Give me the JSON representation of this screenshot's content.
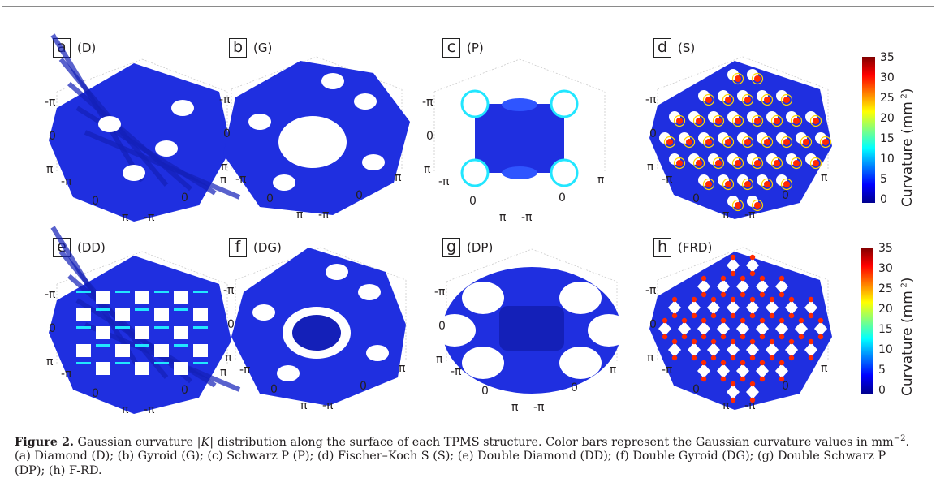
{
  "figure": {
    "panels": [
      {
        "letter": "a",
        "abbr": "(D)",
        "style": "grid"
      },
      {
        "letter": "b",
        "abbr": "(G)",
        "style": "gyroid"
      },
      {
        "letter": "c",
        "abbr": "(P)",
        "style": "schwarz"
      },
      {
        "letter": "d",
        "abbr": "(S)",
        "style": "hot"
      },
      {
        "letter": "e",
        "abbr": "(DD)",
        "style": "checker"
      },
      {
        "letter": "f",
        "abbr": "(DG)",
        "style": "double-gyroid"
      },
      {
        "letter": "g",
        "abbr": "(DP)",
        "style": "double-schwarz"
      },
      {
        "letter": "h",
        "abbr": "(FRD)",
        "style": "frd"
      }
    ],
    "tick_labels": {
      "neg_pi": "-π",
      "zero": "0",
      "pi": "π"
    },
    "colorbar": {
      "title": "Curvature (mm",
      "title_sup": "-2",
      "title_end": ")",
      "ticks": [
        "35",
        "30",
        "25",
        "20",
        "15",
        "10",
        "5",
        "0"
      ],
      "colors": [
        "#7f0000",
        "#ff0000",
        "#ff8000",
        "#ffff00",
        "#80ff80",
        "#00ffff",
        "#0080ff",
        "#0000ff",
        "#00008f"
      ]
    },
    "surface_colors": {
      "base": "#1f2fe0",
      "dark": "#1420b8",
      "light": "#2f55ff",
      "hot": "#ff2a00",
      "warm": "#ffd600",
      "cyan": "#22e6ff"
    }
  },
  "caption": {
    "label": "Figure 2.",
    "text_1": " Gaussian curvature |",
    "var": "K",
    "text_2": "| distribution along the surface of each TPMS structure. Color bars represent the Gaussian curvature values in mm",
    "unit_sup": "−2",
    "text_3": ". (a) Diamond (D); (b) Gyroid (G); (c) Schwarz P (P); (d) Fischer–Koch S (S); (e) Double Diamond (DD); (f) Double Gyroid (DG); (g) Double Schwarz P (DP); (h) F-RD."
  }
}
